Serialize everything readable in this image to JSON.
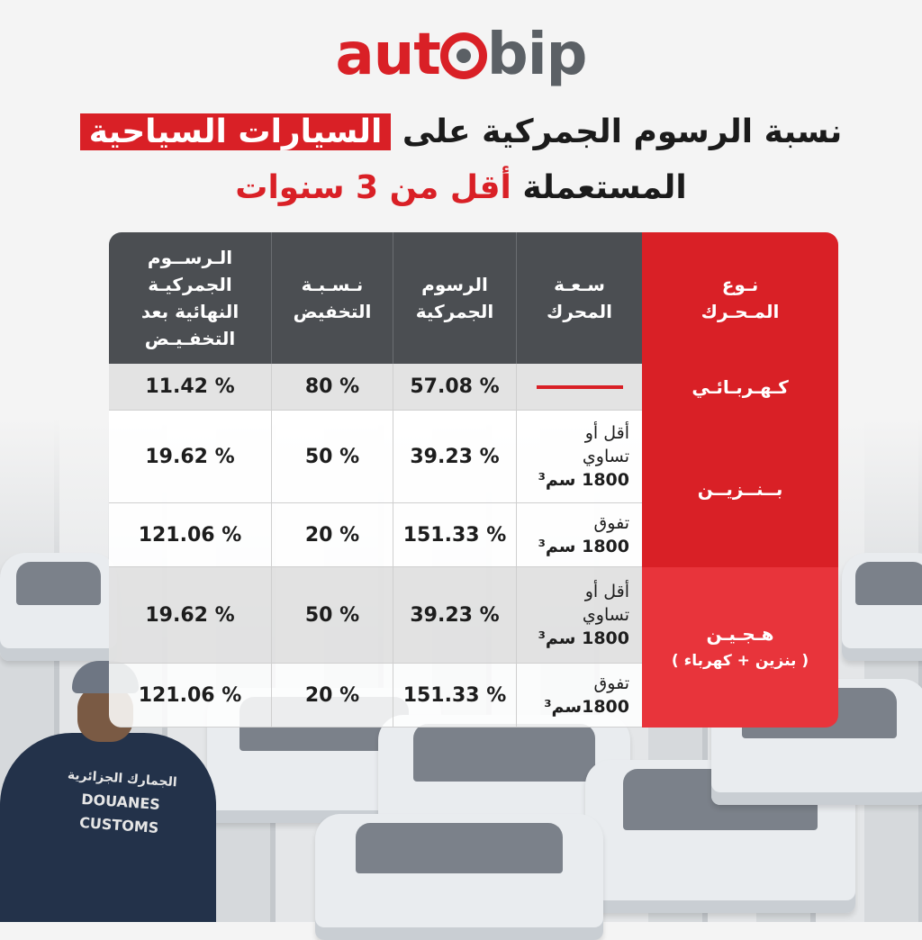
{
  "brand": {
    "part1": "aut",
    "part2": "bip"
  },
  "title": {
    "line1_pre": "نسبة الرسوم الجمركية على",
    "line1_highlight": "السيارات السياحية",
    "line2_pre": "المستعملة",
    "line2_highlight": "أقل من 3 سنوات"
  },
  "table": {
    "headers": {
      "engine_type": "نـوع المـحـرك",
      "engine_capacity": "سـعـة المحرك",
      "customs_duties": "الرسوم الجمركية",
      "discount_rate": "نـسـبـة التخفيض",
      "final_duties": "الـرســوم الجمركيـة النهائية بعد التخفـيـض"
    },
    "types": {
      "electric": "كـهـربـائـي",
      "petrol": "بــنــزيــن",
      "hybrid_line1": "هـجـيـن",
      "hybrid_line2": "( بنزين + كهرباء )"
    },
    "rows": [
      {
        "capacity": "",
        "customs": "57.08 %",
        "discount": "80 %",
        "final": "11.42 %"
      },
      {
        "capacity_l1": "أقل أو",
        "capacity_l2": "تساوي",
        "capacity_l3": "1800 سم³",
        "customs": "39.23 %",
        "discount": "50 %",
        "final": "19.62 %"
      },
      {
        "capacity_l1": "تفوق",
        "capacity_l2": "1800 سم³",
        "customs": "151.33 %",
        "discount": "20 %",
        "final": "121.06 %"
      },
      {
        "capacity_l1": "أقل أو",
        "capacity_l2": "تساوي",
        "capacity_l3": "1800 سم³",
        "customs": "39.23 %",
        "discount": "50 %",
        "final": "19.62 %"
      },
      {
        "capacity_l1": "تفوق",
        "capacity_l2": "1800سم³",
        "customs": "151.33 %",
        "discount": "20 %",
        "final": "121.06 %"
      }
    ]
  },
  "photo": {
    "patch_line1": "الجمارك الجزائرية",
    "patch_line2": "DOUANES",
    "patch_line3": "CUSTOMS"
  },
  "colors": {
    "brand_red": "#d92026",
    "header_gray": "#4b4e52",
    "logo_gray": "#5b6065"
  }
}
